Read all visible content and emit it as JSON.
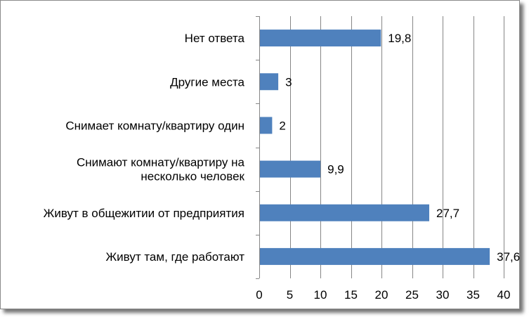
{
  "chart_data": {
    "type": "bar",
    "orientation": "horizontal",
    "categories": [
      [
        "Нет ответа"
      ],
      [
        "Другие места"
      ],
      [
        "Снимает комнату/квартиру один"
      ],
      [
        "Снимают комнату/квартиру на",
        "несколько человек"
      ],
      [
        "Живут в общежитии от предприятия"
      ],
      [
        "Живут там, где работают"
      ]
    ],
    "values": [
      19.8,
      3,
      2,
      9.9,
      27.7,
      37.6
    ],
    "value_labels": [
      "19,8",
      "3",
      "2",
      "9,9",
      "27,7",
      "37,6"
    ],
    "xlim": [
      0,
      40
    ],
    "xticks": [
      0,
      5,
      10,
      15,
      20,
      25,
      30,
      35,
      40
    ],
    "grid": "vertical",
    "legend": "none",
    "bar_color": "#4f81bd",
    "title": "",
    "xlabel": "",
    "ylabel": ""
  }
}
